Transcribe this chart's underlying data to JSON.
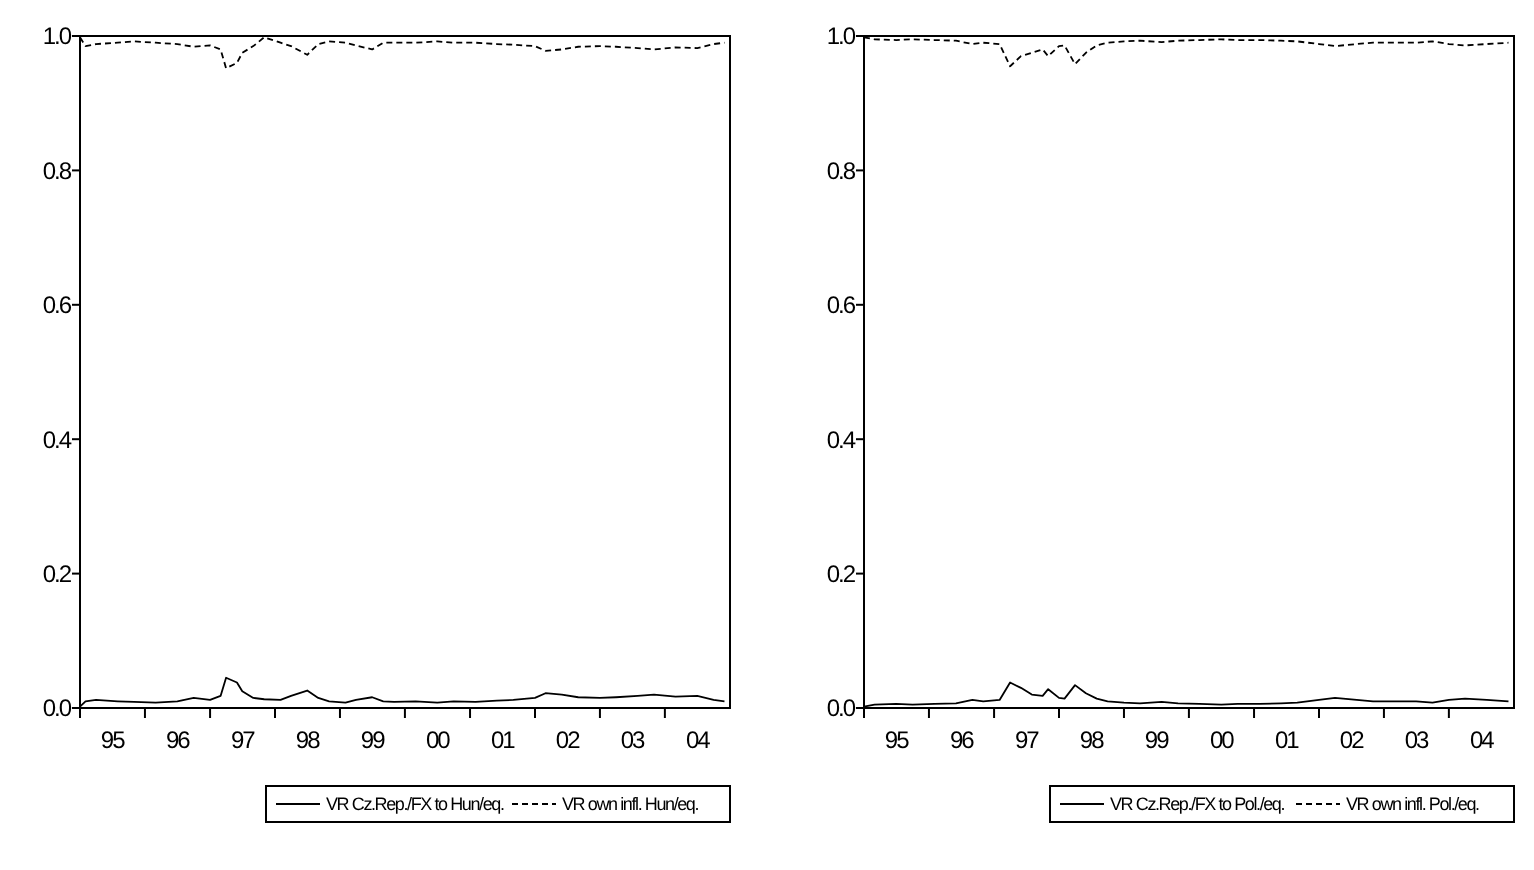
{
  "chart_data": [
    {
      "type": "line",
      "x": [
        "1995-01",
        "1995-02",
        "1995-04",
        "1995-08",
        "1995-11",
        "1996-03",
        "1996-07",
        "1996-10",
        "1997-01",
        "1997-03",
        "1997-04",
        "1997-06",
        "1997-07",
        "1997-09",
        "1997-11",
        "1998-02",
        "1998-04",
        "1998-07",
        "1998-09",
        "1998-11",
        "1999-02",
        "1999-04",
        "1999-07",
        "1999-09",
        "1999-11",
        "2000-03",
        "2000-07",
        "2000-10",
        "2001-02",
        "2001-06",
        "2001-09",
        "2002-01",
        "2002-03",
        "2002-06",
        "2002-09",
        "2003-01",
        "2003-04",
        "2003-08",
        "2003-11",
        "2004-03",
        "2004-07",
        "2004-10",
        "2004-12"
      ],
      "series": [
        {
          "name": "VR Cz.Rep./FX to Hun/eq.",
          "color": "#000000",
          "line_style": "solid",
          "values": [
            0.002,
            0.01,
            0.012,
            0.01,
            0.009,
            0.008,
            0.01,
            0.015,
            0.012,
            0.018,
            0.045,
            0.038,
            0.025,
            0.015,
            0.013,
            0.012,
            0.018,
            0.026,
            0.015,
            0.01,
            0.008,
            0.012,
            0.016,
            0.01,
            0.009,
            0.01,
            0.008,
            0.01,
            0.009,
            0.011,
            0.012,
            0.015,
            0.022,
            0.02,
            0.016,
            0.015,
            0.016,
            0.018,
            0.02,
            0.017,
            0.018,
            0.012,
            0.01
          ]
        },
        {
          "name": "VR own infl. Hun/eq.",
          "color": "#000000",
          "line_style": "dashed",
          "values": [
            0.998,
            0.985,
            0.988,
            0.99,
            0.992,
            0.99,
            0.988,
            0.984,
            0.986,
            0.98,
            0.952,
            0.96,
            0.975,
            0.985,
            0.998,
            0.99,
            0.985,
            0.972,
            0.988,
            0.992,
            0.99,
            0.986,
            0.98,
            0.99,
            0.99,
            0.99,
            0.992,
            0.99,
            0.99,
            0.988,
            0.987,
            0.985,
            0.978,
            0.98,
            0.984,
            0.985,
            0.984,
            0.982,
            0.98,
            0.983,
            0.982,
            0.988,
            0.99
          ]
        }
      ],
      "xlim": [
        "1995-01",
        "2005-01"
      ],
      "xticks": [
        {
          "value": "1995-07",
          "label": "95"
        },
        {
          "value": "1996-07",
          "label": "96"
        },
        {
          "value": "1997-07",
          "label": "97"
        },
        {
          "value": "1998-07",
          "label": "98"
        },
        {
          "value": "1999-07",
          "label": "99"
        },
        {
          "value": "2000-07",
          "label": "00"
        },
        {
          "value": "2001-07",
          "label": "01"
        },
        {
          "value": "2002-07",
          "label": "02"
        },
        {
          "value": "2003-07",
          "label": "03"
        },
        {
          "value": "2004-07",
          "label": "04"
        }
      ],
      "ylim": [
        0,
        1
      ],
      "yticks": [
        {
          "value": 0,
          "label": "0.0"
        },
        {
          "value": 0.2,
          "label": "0.2"
        },
        {
          "value": 0.4,
          "label": "0.4"
        },
        {
          "value": 0.6,
          "label": "0.6"
        },
        {
          "value": 0.8,
          "label": "0.8"
        },
        {
          "value": 1,
          "label": "1.0"
        }
      ],
      "legend": "bottom",
      "grid": false
    },
    {
      "type": "line",
      "x": [
        "1995-01",
        "1995-03",
        "1995-07",
        "1995-10",
        "1996-02",
        "1996-06",
        "1996-09",
        "1996-11",
        "1997-02",
        "1997-04",
        "1997-06",
        "1997-08",
        "1997-10",
        "1997-11",
        "1998-01",
        "1998-02",
        "1998-04",
        "1998-06",
        "1998-08",
        "1998-10",
        "1999-01",
        "1999-04",
        "1999-08",
        "1999-11",
        "2000-03",
        "2000-07",
        "2000-10",
        "2001-02",
        "2001-06",
        "2001-09",
        "2002-01",
        "2002-04",
        "2002-08",
        "2002-11",
        "2003-03",
        "2003-07",
        "2003-10",
        "2004-01",
        "2004-04",
        "2004-08",
        "2004-12"
      ],
      "series": [
        {
          "name": "VR Cz.Rep./FX to Pol./eq.",
          "color": "#000000",
          "line_style": "solid",
          "values": [
            0.002,
            0.005,
            0.006,
            0.005,
            0.006,
            0.007,
            0.012,
            0.01,
            0.012,
            0.038,
            0.03,
            0.02,
            0.018,
            0.028,
            0.015,
            0.014,
            0.034,
            0.022,
            0.014,
            0.01,
            0.008,
            0.007,
            0.009,
            0.007,
            0.006,
            0.005,
            0.006,
            0.006,
            0.007,
            0.008,
            0.012,
            0.015,
            0.012,
            0.01,
            0.01,
            0.01,
            0.008,
            0.012,
            0.014,
            0.012,
            0.01
          ]
        },
        {
          "name": "VR own infl. Pol./eq.",
          "color": "#000000",
          "line_style": "dashed",
          "values": [
            0.998,
            0.995,
            0.994,
            0.995,
            0.994,
            0.993,
            0.988,
            0.99,
            0.988,
            0.955,
            0.97,
            0.975,
            0.98,
            0.97,
            0.985,
            0.986,
            0.958,
            0.975,
            0.986,
            0.99,
            0.992,
            0.993,
            0.991,
            0.993,
            0.994,
            0.995,
            0.994,
            0.994,
            0.993,
            0.992,
            0.988,
            0.985,
            0.988,
            0.99,
            0.99,
            0.99,
            0.992,
            0.988,
            0.986,
            0.988,
            0.99
          ]
        }
      ],
      "xlim": [
        "1995-01",
        "2005-01"
      ],
      "xticks": [
        {
          "value": "1995-07",
          "label": "95"
        },
        {
          "value": "1996-07",
          "label": "96"
        },
        {
          "value": "1997-07",
          "label": "97"
        },
        {
          "value": "1998-07",
          "label": "98"
        },
        {
          "value": "1999-07",
          "label": "99"
        },
        {
          "value": "2000-07",
          "label": "00"
        },
        {
          "value": "2001-07",
          "label": "01"
        },
        {
          "value": "2002-07",
          "label": "02"
        },
        {
          "value": "2003-07",
          "label": "03"
        },
        {
          "value": "2004-07",
          "label": "04"
        }
      ],
      "ylim": [
        0,
        1
      ],
      "yticks": [
        {
          "value": 0,
          "label": "0.0"
        },
        {
          "value": 0.2,
          "label": "0.2"
        },
        {
          "value": 0.4,
          "label": "0.4"
        },
        {
          "value": 0.6,
          "label": "0.6"
        },
        {
          "value": 0.8,
          "label": "0.8"
        },
        {
          "value": 1,
          "label": "1.0"
        }
      ],
      "legend": "bottom",
      "grid": false
    }
  ]
}
